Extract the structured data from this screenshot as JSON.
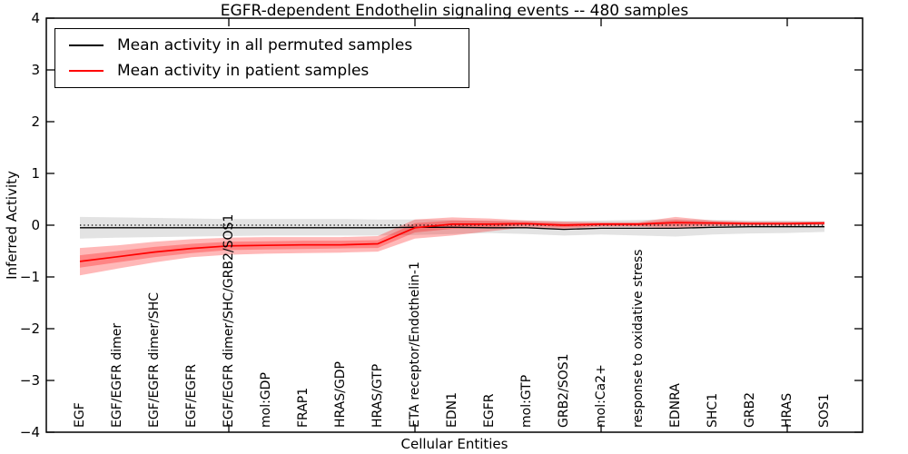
{
  "figure": {
    "title": "EGFR-dependent Endothelin signaling events -- 480 samples",
    "xlabel": "Cellular Entities",
    "ylabel": "Inferred Activity"
  },
  "legend": {
    "items": [
      {
        "label": "Mean activity in all permuted samples",
        "color": "#000000"
      },
      {
        "label": "Mean activity in patient samples",
        "color": "#ff0000"
      }
    ]
  },
  "chart_data": {
    "type": "line",
    "title": "EGFR-dependent Endothelin signaling events -- 480 samples",
    "xlabel": "Cellular Entities",
    "ylabel": "Inferred Activity",
    "ylim": [
      -4,
      4
    ],
    "yticks": [
      -4,
      -3,
      -2,
      -1,
      0,
      1,
      2,
      3,
      4
    ],
    "xtick_positions": [
      5,
      10,
      15,
      20
    ],
    "grid": false,
    "legend_position": "upper left",
    "zero_line": {
      "y": 0,
      "style": "dotted",
      "color": "#000000"
    },
    "categories": [
      "EGF",
      "EGF/EGFR dimer",
      "EGF/EGFR dimer/SHC",
      "EGF/EGFR",
      "EGF/EGFR dimer/SHC/GRB2/SOS1",
      "mol:GDP",
      "FRAP1",
      "HRAS/GDP",
      "HRAS/GTP",
      "ETA receptor/Endothelin-1",
      "EDN1",
      "EGFR",
      "mol:GTP",
      "GRB2/SOS1",
      "mol:Ca2+",
      "response to oxidative stress",
      "EDNRA",
      "SHC1",
      "GRB2",
      "HRAS",
      "SOS1"
    ],
    "series": [
      {
        "name": "Mean activity in all permuted samples",
        "color": "#000000",
        "line_width": 1.3,
        "band_color": "#999999",
        "band_opacity": 0.28,
        "values": [
          -0.05,
          -0.05,
          -0.05,
          -0.05,
          -0.05,
          -0.05,
          -0.05,
          -0.05,
          -0.05,
          -0.04,
          -0.04,
          -0.05,
          -0.05,
          -0.08,
          -0.06,
          -0.06,
          -0.06,
          -0.04,
          -0.03,
          -0.03,
          -0.03
        ],
        "band_upper": [
          0.16,
          0.15,
          0.14,
          0.13,
          0.12,
          0.12,
          0.12,
          0.12,
          0.11,
          0.11,
          0.1,
          0.09,
          0.09,
          0.08,
          0.09,
          0.1,
          0.12,
          0.1,
          0.09,
          0.09,
          0.08
        ],
        "band_lower": [
          -0.26,
          -0.24,
          -0.23,
          -0.22,
          -0.21,
          -0.2,
          -0.2,
          -0.2,
          -0.2,
          -0.19,
          -0.17,
          -0.15,
          -0.17,
          -0.2,
          -0.18,
          -0.2,
          -0.22,
          -0.18,
          -0.16,
          -0.15,
          -0.13
        ]
      },
      {
        "name": "Mean activity in patient samples",
        "color": "#ff0000",
        "line_width": 1.7,
        "band_color": "#ff0000",
        "band_opacity": 0.28,
        "values": [
          -0.7,
          -0.61,
          -0.52,
          -0.45,
          -0.4,
          -0.39,
          -0.38,
          -0.38,
          -0.36,
          -0.05,
          0.02,
          0.02,
          0.03,
          0.0,
          0.02,
          0.02,
          0.05,
          0.04,
          0.03,
          0.03,
          0.04
        ],
        "band_upper": [
          -0.44,
          -0.39,
          -0.32,
          -0.27,
          -0.24,
          -0.23,
          -0.23,
          -0.23,
          -0.21,
          0.11,
          0.15,
          0.13,
          0.09,
          0.07,
          0.06,
          0.06,
          0.16,
          0.09,
          0.07,
          0.07,
          0.07
        ],
        "band_lower": [
          -0.97,
          -0.84,
          -0.72,
          -0.62,
          -0.57,
          -0.55,
          -0.54,
          -0.53,
          -0.51,
          -0.26,
          -0.2,
          -0.12,
          -0.04,
          -0.07,
          -0.03,
          -0.03,
          -0.06,
          -0.02,
          -0.01,
          -0.01,
          0.0
        ],
        "inner_band_upper": [
          -0.58,
          -0.5,
          -0.42,
          -0.36,
          -0.32,
          -0.31,
          -0.3,
          -0.3,
          -0.29,
          0.04,
          0.09,
          0.08,
          0.06,
          0.04,
          0.04,
          0.04,
          0.1,
          0.07,
          0.05,
          0.05,
          0.06
        ],
        "inner_band_lower": [
          -0.82,
          -0.72,
          -0.62,
          -0.54,
          -0.48,
          -0.47,
          -0.46,
          -0.45,
          -0.44,
          -0.14,
          -0.07,
          -0.04,
          0.0,
          -0.04,
          -0.01,
          -0.01,
          -0.01,
          0.01,
          0.01,
          0.01,
          0.02
        ]
      }
    ]
  }
}
